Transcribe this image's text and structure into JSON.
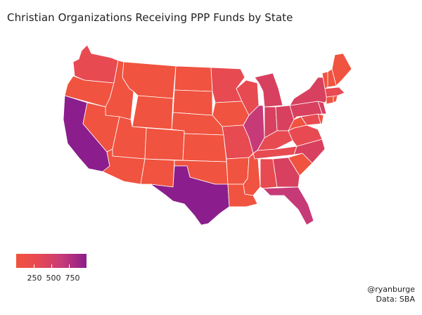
{
  "title": "Christian Organizations Receiving PPP Funds by State",
  "legend": {
    "ticks": [
      "250",
      "500",
      "750"
    ],
    "tick_values": [
      250,
      500,
      750
    ],
    "min": 0,
    "max": 900,
    "color_low": "#f0533f",
    "color_mid": "#c73a78",
    "color_high": "#8b1e8c"
  },
  "credit": {
    "handle": "@ryanburge",
    "source": "Data: SBA"
  },
  "chart_data": {
    "type": "choropleth",
    "region": "United States (lower 48)",
    "title": "Christian Organizations Receiving PPP Funds by State",
    "colors": {
      "low": "#f0533f",
      "mid_low": "#e84a52",
      "mid": "#d8405f",
      "mid_high": "#c73a78",
      "high": "#8b1e8c"
    },
    "states": [
      {
        "state": "CA",
        "level": "high"
      },
      {
        "state": "TX",
        "level": "high"
      },
      {
        "state": "FL",
        "level": "mid_high"
      },
      {
        "state": "IL",
        "level": "mid_high"
      },
      {
        "state": "PA",
        "level": "mid"
      },
      {
        "state": "OH",
        "level": "mid"
      },
      {
        "state": "NY",
        "level": "mid"
      },
      {
        "state": "GA",
        "level": "mid"
      },
      {
        "state": "MI",
        "level": "mid"
      },
      {
        "state": "IN",
        "level": "mid"
      },
      {
        "state": "NC",
        "level": "mid"
      },
      {
        "state": "NJ",
        "level": "mid"
      },
      {
        "state": "TN",
        "level": "mid_low"
      },
      {
        "state": "MO",
        "level": "mid_low"
      },
      {
        "state": "MN",
        "level": "mid_low"
      },
      {
        "state": "WI",
        "level": "mid_low"
      },
      {
        "state": "WA",
        "level": "mid_low"
      },
      {
        "state": "MD",
        "level": "mid_low"
      },
      {
        "state": "AL",
        "level": "mid_low"
      },
      {
        "state": "KY",
        "level": "mid_low"
      },
      {
        "state": "VA",
        "level": "mid_low"
      },
      {
        "state": "MA",
        "level": "mid_low"
      },
      {
        "state": "OK",
        "level": "low"
      },
      {
        "state": "AZ",
        "level": "low"
      },
      {
        "state": "CO",
        "level": "low"
      },
      {
        "state": "OR",
        "level": "low"
      },
      {
        "state": "SC",
        "level": "low"
      },
      {
        "state": "LA",
        "level": "low"
      },
      {
        "state": "MS",
        "level": "low"
      },
      {
        "state": "AR",
        "level": "low"
      },
      {
        "state": "KS",
        "level": "low"
      },
      {
        "state": "IA",
        "level": "low"
      },
      {
        "state": "NE",
        "level": "low"
      },
      {
        "state": "NV",
        "level": "low"
      },
      {
        "state": "NM",
        "level": "low"
      },
      {
        "state": "UT",
        "level": "low"
      },
      {
        "state": "ID",
        "level": "low"
      },
      {
        "state": "MT",
        "level": "low"
      },
      {
        "state": "WY",
        "level": "low"
      },
      {
        "state": "ND",
        "level": "low"
      },
      {
        "state": "SD",
        "level": "low"
      },
      {
        "state": "WV",
        "level": "low"
      },
      {
        "state": "ME",
        "level": "low"
      },
      {
        "state": "NH",
        "level": "low"
      },
      {
        "state": "VT",
        "level": "low"
      },
      {
        "state": "CT",
        "level": "low"
      },
      {
        "state": "RI",
        "level": "low"
      },
      {
        "state": "DE",
        "level": "low"
      }
    ]
  }
}
